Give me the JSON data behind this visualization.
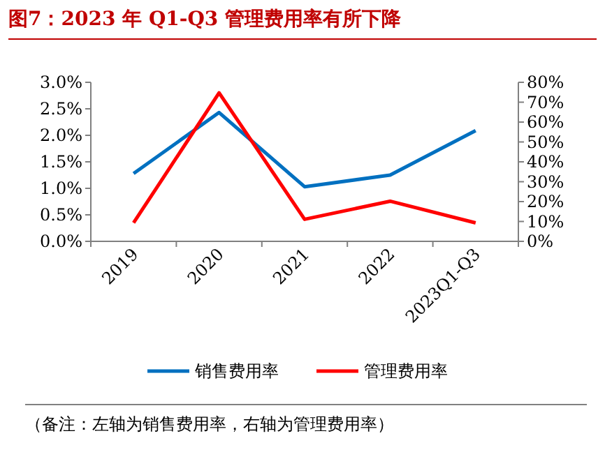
{
  "chart_data": {
    "type": "line",
    "title": "图7：2023 年 Q1-Q3 管理费用率有所下降",
    "categories": [
      "2019",
      "2020",
      "2021",
      "2022",
      "2023Q1-Q3"
    ],
    "series": [
      {
        "name": "销售费用率",
        "color": "#0070c0",
        "values": [
          1.28,
          2.43,
          1.03,
          1.25,
          2.09
        ]
      },
      {
        "name": "管理费用率",
        "color": "#ff0000",
        "axis": "y2",
        "values": [
          9.3,
          74.7,
          11.1,
          20.2,
          9.3
        ]
      }
    ],
    "ylim": [
      0,
      3
    ],
    "yticks": [
      {
        "value": 0,
        "label": "0.0%"
      },
      {
        "value": 0.5,
        "label": "0.5%"
      },
      {
        "value": 1,
        "label": "1.0%"
      },
      {
        "value": 1.5,
        "label": "1.5%"
      },
      {
        "value": 2,
        "label": "2.0%"
      },
      {
        "value": 2.5,
        "label": "2.5%"
      },
      {
        "value": 3,
        "label": "3.0%"
      }
    ],
    "y2lim": [
      0,
      80
    ],
    "y2ticks": [
      {
        "value": 0,
        "label": "0%"
      },
      {
        "value": 10,
        "label": "10%"
      },
      {
        "value": 20,
        "label": "20%"
      },
      {
        "value": 30,
        "label": "30%"
      },
      {
        "value": 40,
        "label": "40%"
      },
      {
        "value": 50,
        "label": "50%"
      },
      {
        "value": 60,
        "label": "60%"
      },
      {
        "value": 70,
        "label": "70%"
      },
      {
        "value": 80,
        "label": "80%"
      }
    ],
    "legend": "bottom",
    "grid": false,
    "annotations": [
      "（备注：左轴为销售费用率，右轴为管理费用率）"
    ]
  }
}
